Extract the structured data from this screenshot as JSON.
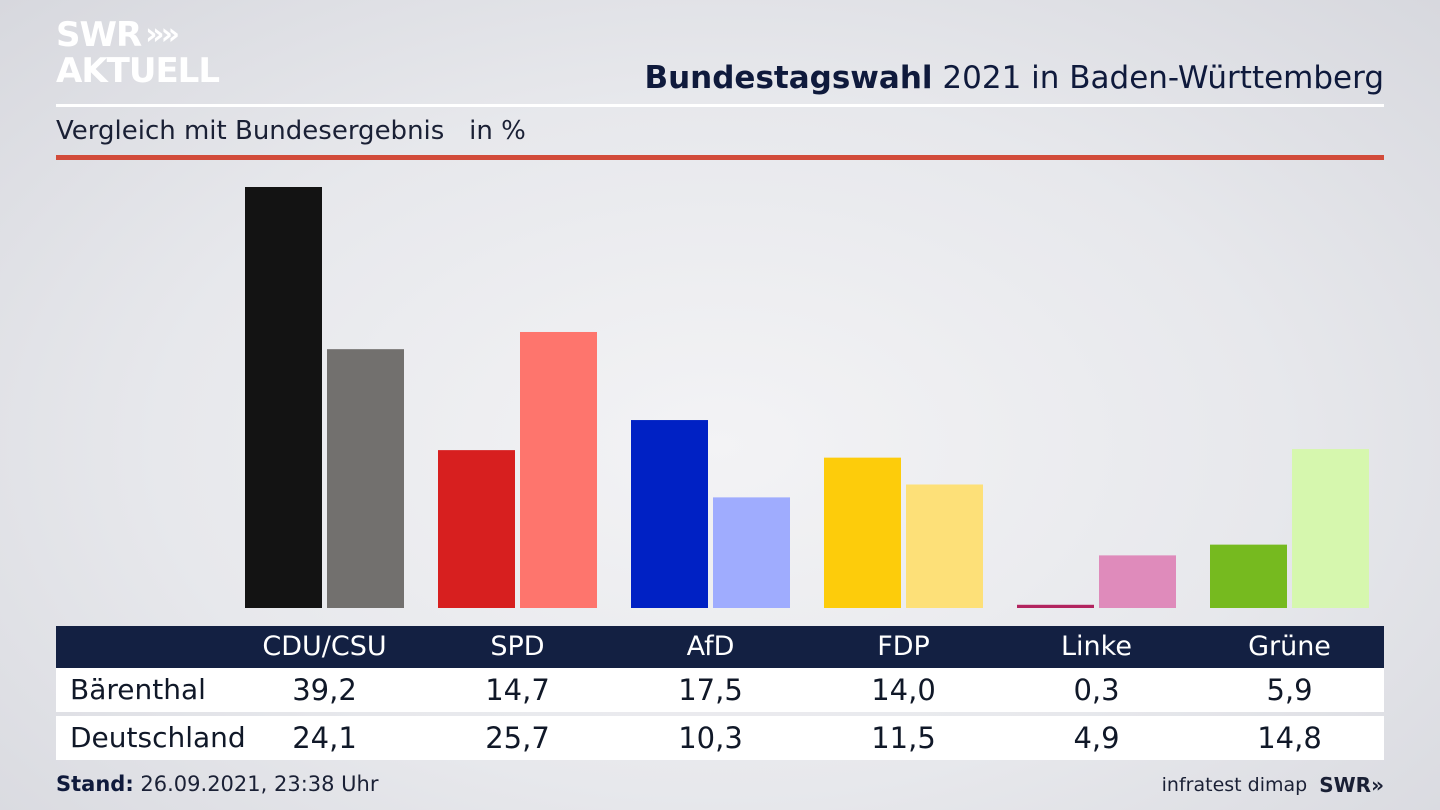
{
  "branding": {
    "logo_line1": "SWR",
    "logo_line2": "AKTUELL",
    "logo_chevrons": "»",
    "footer_logo": "SWR»"
  },
  "header": {
    "title_bold": "Bundestagswahl",
    "title_rest": " 2021 in Baden-Württemberg",
    "subtitle": "Vergleich mit Bundesergebnis   in %"
  },
  "footer": {
    "stand_label": "Stand:",
    "stand_value": " 26.09.2021, 23:38 Uhr",
    "source": "infratest dimap"
  },
  "table": {
    "rows": [
      {
        "label": "Bärenthal",
        "values": [
          "39,2",
          "14,7",
          "17,5",
          "14,0",
          "0,3",
          "5,9"
        ]
      },
      {
        "label": "Deutschland",
        "values": [
          "24,1",
          "25,7",
          "10,3",
          "11,5",
          "4,9",
          "14,8"
        ]
      }
    ]
  },
  "chart_data": {
    "type": "bar",
    "title": "Bundestagswahl 2021 in Baden-Württemberg",
    "subtitle": "Vergleich mit Bundesergebnis   in %",
    "categories": [
      "CDU/CSU",
      "SPD",
      "AfD",
      "FDP",
      "Linke",
      "Grüne"
    ],
    "series": [
      {
        "name": "Bärenthal",
        "values": [
          39.2,
          14.7,
          17.5,
          14.0,
          0.3,
          5.9
        ],
        "colors": [
          "#131313",
          "#d71f1f",
          "#0021c4",
          "#fdcc0b",
          "#b2245f",
          "#76ba1f"
        ]
      },
      {
        "name": "Deutschland",
        "values": [
          24.1,
          25.7,
          10.3,
          11.5,
          4.9,
          14.8
        ],
        "colors": [
          "#72706e",
          "#fe756d",
          "#9facfe",
          "#fde078",
          "#df8bbb",
          "#d6f7ae"
        ]
      }
    ],
    "ylim": [
      0,
      39.2
    ],
    "grid": false,
    "legend": "table-below"
  }
}
